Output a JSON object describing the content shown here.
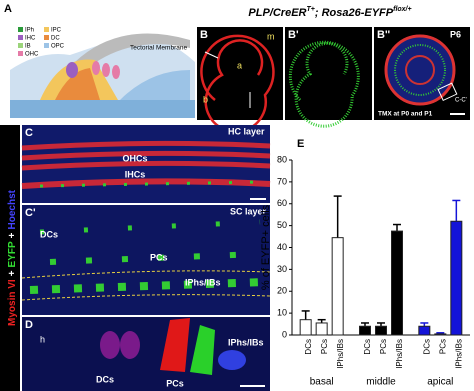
{
  "figure": {
    "panel_a": {
      "label": "A",
      "tectorial": "Tectorial Membrane",
      "legend": [
        "IPh",
        "IHC",
        "IB",
        "OHC",
        "IPC",
        "DC",
        "OPC"
      ]
    },
    "title": {
      "gene": "PLP/CreER",
      "gene_sup": "T+",
      "reporter": "; Rosa26-EYFP",
      "reporter_sup": "flox/+"
    },
    "panel_b": {
      "label": "B",
      "m": "m",
      "a": "a",
      "b": "b"
    },
    "panel_b1": {
      "label": "B'"
    },
    "panel_b2": {
      "label": "B''",
      "age": "P6",
      "box": "C-C'",
      "tmx": "TMX at P0 and P1"
    },
    "panel_c": {
      "label": "C",
      "layer": "HC layer",
      "ohc": "OHCs",
      "ihc": "IHCs"
    },
    "panel_c1": {
      "label": "C'",
      "layer": "SC layer",
      "dcs": "DCs",
      "pcs": "PCs",
      "iphs": "IPhs/IBs"
    },
    "panel_d": {
      "label": "D",
      "h": "h",
      "dcs": "DCs",
      "pcs": "PCs",
      "iphs": "IPhs/IBs"
    },
    "stain": [
      "Myosin VI",
      "+",
      "EYFP",
      "+",
      "Hoechst"
    ]
  },
  "chart_data": {
    "type": "bar",
    "label": "E",
    "y_label": "% of EYFP+ cells",
    "categories": [
      "DCs",
      "PCs",
      "IPhs/IBs"
    ],
    "series": [
      {
        "name": "basal",
        "color": "#ffffff",
        "values": [
          7,
          5.5,
          44.5
        ],
        "errors": [
          4,
          1.5,
          19
        ]
      },
      {
        "name": "middle",
        "color": "#000000",
        "values": [
          4,
          4,
          47.5
        ],
        "errors": [
          1.5,
          1.5,
          3
        ]
      },
      {
        "name": "apical",
        "color": "#1414d8",
        "values": [
          4,
          0.5,
          52
        ],
        "errors": [
          1.5,
          0.5,
          9.5
        ]
      }
    ],
    "ylim": [
      0,
      80
    ],
    "yticks": [
      0,
      10,
      20,
      30,
      40,
      50,
      60,
      70,
      80
    ]
  }
}
